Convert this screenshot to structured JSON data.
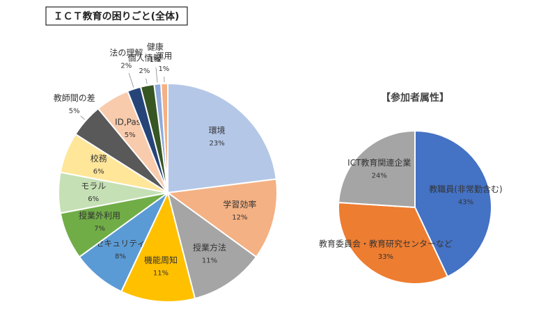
{
  "chart_data": [
    {
      "type": "pie",
      "title": "ＩＣＴ教育の困りごと(全体)",
      "categories": [
        "環境",
        "学習効率",
        "授業方法",
        "機能周知",
        "セキュリティ",
        "授業外利用",
        "モラル",
        "校務",
        "教師間の差",
        "ID,Pass",
        "法の理解",
        "個人情報",
        "健康",
        "運用"
      ],
      "values": [
        23,
        12,
        11,
        11,
        8,
        7,
        6,
        6,
        5,
        5,
        2,
        2,
        1,
        1
      ],
      "value_labels": [
        "23%",
        "12%",
        "11%",
        "11%",
        "8%",
        "7%",
        "6%",
        "6%",
        "5%",
        "5%",
        "2%",
        "2%",
        "1%",
        "1%"
      ],
      "colors": [
        "#b4c7e7",
        "#f4b183",
        "#a5a5a5",
        "#ffc000",
        "#5b9bd5",
        "#70ad47",
        "#c5e0b4",
        "#ffe699",
        "#595959",
        "#f8cbad",
        "#264478",
        "#375623",
        "#8faadc",
        "#f4b183"
      ]
    },
    {
      "type": "pie",
      "title": "【参加者属性】",
      "categories": [
        "教職員(非常勤含む)",
        "教育委員会・教育研究センターなど",
        "ICT教育関連企業"
      ],
      "values": [
        43,
        33,
        24
      ],
      "value_labels": [
        "43%",
        "33%",
        "24%"
      ],
      "colors": [
        "#4472c4",
        "#ed7d31",
        "#a5a5a5"
      ]
    }
  ]
}
